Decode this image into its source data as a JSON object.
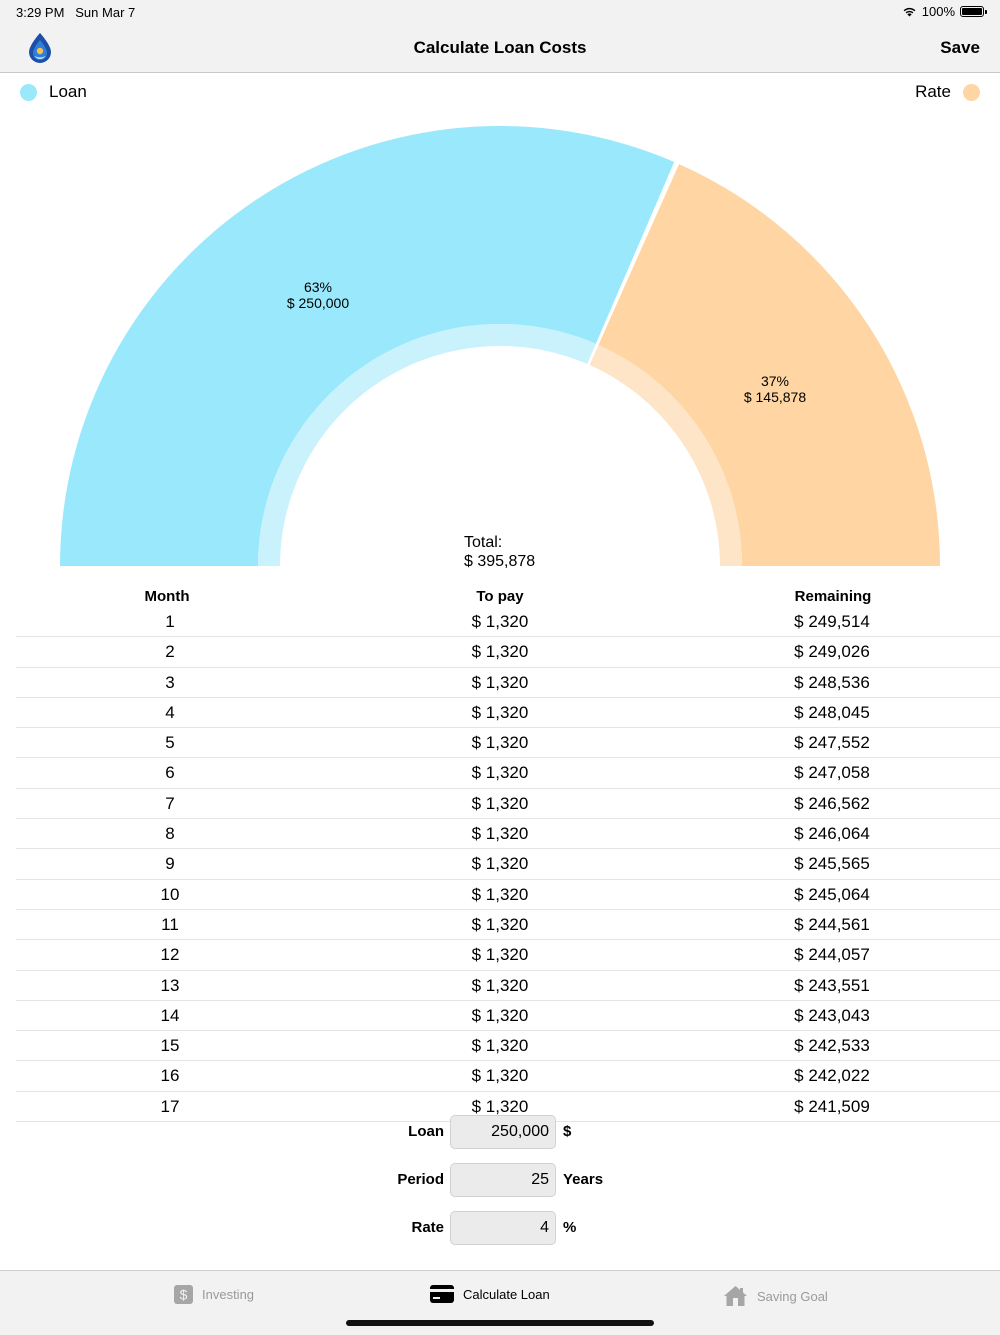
{
  "status_bar": {
    "time": "3:29 PM",
    "date": "Sun Mar 7",
    "battery": "100%"
  },
  "navbar": {
    "title": "Calculate Loan Costs",
    "save_label": "Save",
    "app_icon": "drop-logo-icon"
  },
  "legend": [
    {
      "label": "Loan",
      "color": "#9ae8fb"
    },
    {
      "label": "Rate",
      "color": "#fed5a3"
    }
  ],
  "chart_data": {
    "type": "pie",
    "style": "half-donut",
    "slices": [
      {
        "name": "Loan",
        "percent_label": "63%",
        "value_label": "$ 250,000",
        "value": 250000,
        "color": "#9ae8fb",
        "inner_color": "#c9f2fd"
      },
      {
        "name": "Rate",
        "percent_label": "37%",
        "value_label": "$ 145,878",
        "value": 145878,
        "color": "#fed5a3",
        "inner_color": "#fee5c7"
      }
    ],
    "total_label": "Total:",
    "total_value": "$ 395,878"
  },
  "table": {
    "headers": {
      "month": "Month",
      "to_pay": "To pay",
      "remaining": "Remaining"
    },
    "rows": [
      {
        "month": "1",
        "to_pay": "$ 1,320",
        "remaining": "$ 249,514"
      },
      {
        "month": "2",
        "to_pay": "$ 1,320",
        "remaining": "$ 249,026"
      },
      {
        "month": "3",
        "to_pay": "$ 1,320",
        "remaining": "$ 248,536"
      },
      {
        "month": "4",
        "to_pay": "$ 1,320",
        "remaining": "$ 248,045"
      },
      {
        "month": "5",
        "to_pay": "$ 1,320",
        "remaining": "$ 247,552"
      },
      {
        "month": "6",
        "to_pay": "$ 1,320",
        "remaining": "$ 247,058"
      },
      {
        "month": "7",
        "to_pay": "$ 1,320",
        "remaining": "$ 246,562"
      },
      {
        "month": "8",
        "to_pay": "$ 1,320",
        "remaining": "$ 246,064"
      },
      {
        "month": "9",
        "to_pay": "$ 1,320",
        "remaining": "$ 245,565"
      },
      {
        "month": "10",
        "to_pay": "$ 1,320",
        "remaining": "$ 245,064"
      },
      {
        "month": "11",
        "to_pay": "$ 1,320",
        "remaining": "$ 244,561"
      },
      {
        "month": "12",
        "to_pay": "$ 1,320",
        "remaining": "$ 244,057"
      },
      {
        "month": "13",
        "to_pay": "$ 1,320",
        "remaining": "$ 243,551"
      },
      {
        "month": "14",
        "to_pay": "$ 1,320",
        "remaining": "$ 243,043"
      },
      {
        "month": "15",
        "to_pay": "$ 1,320",
        "remaining": "$ 242,533"
      },
      {
        "month": "16",
        "to_pay": "$ 1,320",
        "remaining": "$ 242,022"
      },
      {
        "month": "17",
        "to_pay": "$ 1,320",
        "remaining": "$ 241,509"
      }
    ]
  },
  "inputs": {
    "loan": {
      "label": "Loan",
      "value": "250,000",
      "unit": "$"
    },
    "period": {
      "label": "Period",
      "value": "25",
      "unit": "Years"
    },
    "rate": {
      "label": "Rate",
      "value": "4",
      "unit": "%"
    }
  },
  "tabbar": {
    "tabs": [
      {
        "label": "Investing",
        "icon": "dollar-icon",
        "active": false
      },
      {
        "label": "Calculate Loan",
        "icon": "credit-card-icon",
        "active": true
      },
      {
        "label": "Saving Goal",
        "icon": "house-icon",
        "active": false
      }
    ]
  }
}
